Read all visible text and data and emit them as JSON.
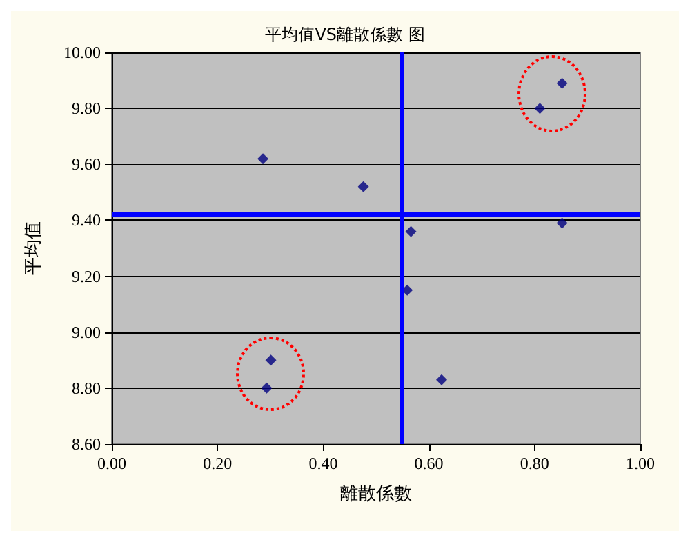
{
  "chart_data": {
    "type": "scatter",
    "title": "平均值VS離散係數 图",
    "xlabel": "離散係數",
    "ylabel": "平均值",
    "x": [
      0.286,
      0.476,
      0.566,
      0.852,
      0.81,
      0.852,
      0.559,
      0.301,
      0.293,
      0.624
    ],
    "series": [
      {
        "color": "#000080",
        "values": [
          9.62,
          9.52,
          9.36,
          9.39,
          9.8,
          9.89,
          9.15,
          8.9,
          8.8,
          8.83
        ]
      }
    ],
    "xlim": [
      0,
      1
    ],
    "xticks": [
      {
        "value": 0,
        "label": "0.00"
      },
      {
        "value": 0.2,
        "label": "0.20"
      },
      {
        "value": 0.4,
        "label": "0.40"
      },
      {
        "value": 0.6,
        "label": "0.60"
      },
      {
        "value": 0.8,
        "label": "0.80"
      },
      {
        "value": 1,
        "label": "1.00"
      }
    ],
    "ylim": [
      8.6,
      10
    ],
    "yticks": [
      {
        "value": 8.6,
        "label": "8.60"
      },
      {
        "value": 8.8,
        "label": "8.80"
      },
      {
        "value": 9,
        "label": "9.00"
      },
      {
        "value": 9.2,
        "label": "9.20"
      },
      {
        "value": 9.4,
        "label": "9.40"
      },
      {
        "value": 9.6,
        "label": "9.60"
      },
      {
        "value": 9.8,
        "label": "9.80"
      },
      {
        "value": 10,
        "label": "10.00"
      }
    ],
    "ref_lines": [
      {
        "axis": "x",
        "value": 0.55,
        "color": "#0000ff"
      },
      {
        "axis": "y",
        "value": 9.42,
        "color": "#0000ff"
      }
    ],
    "grid": "y",
    "marker": "diamond"
  }
}
